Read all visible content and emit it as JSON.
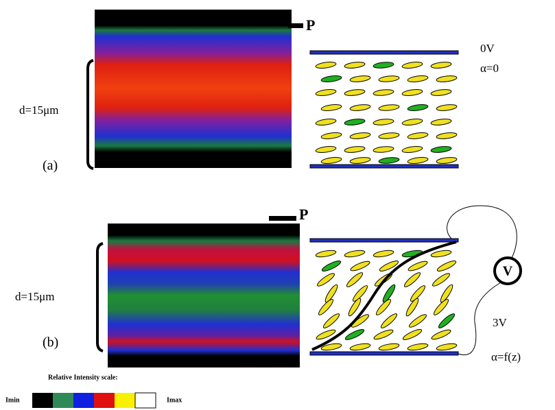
{
  "panel_a": {
    "polarizer": "P",
    "thickness": "d=15μm",
    "label": "(a)",
    "voltage": "0V",
    "angle": "α=0"
  },
  "panel_b": {
    "polarizer": "P",
    "thickness": "d=15μm",
    "label": "(b)",
    "meter": "V",
    "voltage": "3V",
    "angle": "α=f(z)"
  },
  "scale": {
    "title": "Relative Intensity scale:",
    "low": "Imin",
    "high": "Imax"
  }
}
